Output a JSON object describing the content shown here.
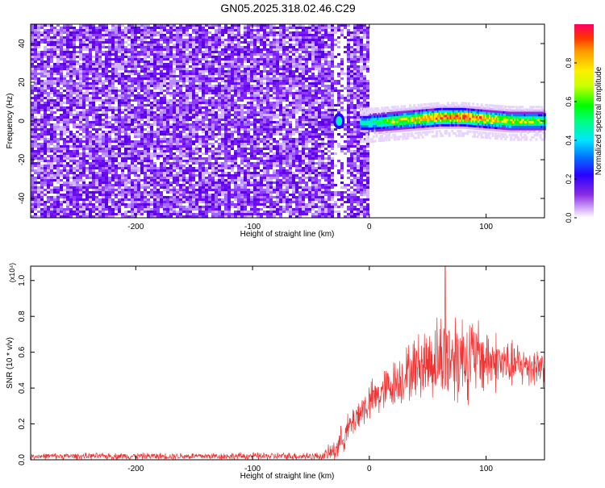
{
  "title": "GN05.2025.318.02.46.C29",
  "colors": {
    "bg_noise": "#7a00ee",
    "signal_core": "#ff2040",
    "snr_line": "#ee3333",
    "axis": "#000000"
  },
  "chart_data": [
    {
      "type": "heatmap",
      "xlabel": "Height of straight line (km)",
      "ylabel": "Frequency (Hz)",
      "xlim": [
        -290,
        150
      ],
      "ylim": [
        -50,
        50
      ],
      "xticks": [
        {
          "v": -200,
          "label": "-200"
        },
        {
          "v": -100,
          "label": "-100"
        },
        {
          "v": 0,
          "label": "0"
        },
        {
          "v": 100,
          "label": "100"
        }
      ],
      "yticks": [
        {
          "v": -40,
          "label": "-40"
        },
        {
          "v": -20,
          "label": "-20"
        },
        {
          "v": 0,
          "label": "0"
        },
        {
          "v": 20,
          "label": "20"
        },
        {
          "v": 40,
          "label": "40"
        }
      ],
      "colorbar": {
        "label": "Normalized spectral amplitude",
        "range": [
          0,
          1
        ],
        "ticks": [
          {
            "v": 0.0,
            "label": "0.0"
          },
          {
            "v": 0.2,
            "label": "0.2"
          },
          {
            "v": 0.4,
            "label": "0.4"
          },
          {
            "v": 0.6,
            "label": "0.6"
          },
          {
            "v": 0.8,
            "label": "0.8"
          }
        ],
        "colormap": "rainbow (purple to red)"
      },
      "signal_track": {
        "description": "narrow band near 0 Hz",
        "x": [
          -10,
          0,
          20,
          40,
          60,
          80,
          100,
          120,
          140,
          150
        ],
        "freq": [
          -1,
          -1,
          0,
          1,
          2,
          2,
          1,
          0,
          0,
          0
        ],
        "amplitude": [
          0.5,
          0.6,
          0.75,
          0.85,
          0.95,
          1.0,
          0.9,
          0.8,
          0.75,
          0.7
        ]
      },
      "isolated_blob": {
        "x": -26,
        "freq": 0,
        "amplitude": 0.55
      }
    },
    {
      "type": "line",
      "xlabel": "Height of straight line (km)",
      "ylabel": "SNR (10 * v/v)",
      "scale_note": "(x10⁴)",
      "xlim": [
        -290,
        150
      ],
      "ylim": [
        0,
        1.08
      ],
      "xticks": [
        {
          "v": -200,
          "label": "-200"
        },
        {
          "v": -100,
          "label": "-100"
        },
        {
          "v": 0,
          "label": "0"
        },
        {
          "v": 100,
          "label": "100"
        }
      ],
      "yticks": [
        {
          "v": 0.0,
          "label": "0.0"
        },
        {
          "v": 0.2,
          "label": "0.2"
        },
        {
          "v": 0.4,
          "label": "0.4"
        },
        {
          "v": 0.6,
          "label": "0.6"
        },
        {
          "v": 0.8,
          "label": "0.8"
        },
        {
          "v": 1.0,
          "label": "1.0"
        }
      ],
      "series": [
        {
          "envelope_x": [
            -290,
            -40,
            -30,
            -20,
            -10,
            0,
            20,
            40,
            60,
            70,
            80,
            100,
            120,
            150
          ],
          "envelope_mean": [
            0.02,
            0.02,
            0.05,
            0.15,
            0.25,
            0.32,
            0.42,
            0.52,
            0.57,
            0.58,
            0.58,
            0.56,
            0.53,
            0.52
          ],
          "envelope_spread": [
            0.015,
            0.02,
            0.06,
            0.08,
            0.09,
            0.1,
            0.12,
            0.16,
            0.22,
            0.26,
            0.24,
            0.18,
            0.12,
            0.1
          ],
          "max_peak": {
            "x": 65,
            "y": 1.08
          }
        }
      ]
    }
  ]
}
